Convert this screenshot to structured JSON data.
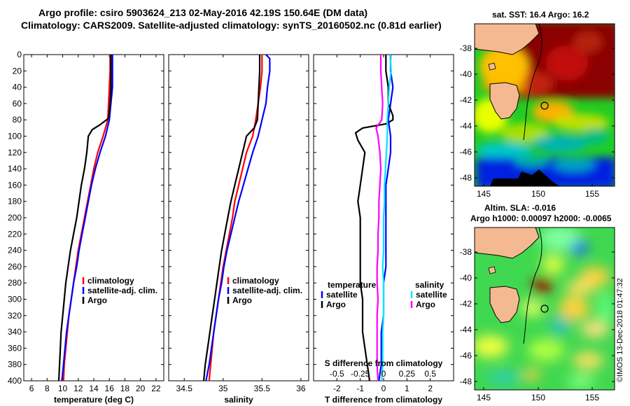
{
  "title_line1": "Argo profile: csiro 5903624_213 02-May-2016 42.19S 150.64E (DM data)",
  "title_line2": "Climatology: CARS2009. Satellite-adjusted climatology: synTS_20160502.nc (0.81d earlier)",
  "sst_title": "sat. SST: 16.4 Argo: 16.2",
  "sla_title1": "Altim. SLA: -0.016",
  "sla_title2": "Argo h1000: 0.00097 h2000: -0.0065",
  "credit": "©IMOS 13-Dec-2018 01:47:32",
  "colors": {
    "climatology": "#ff0000",
    "satellite": "#0000ff",
    "argo": "#000000",
    "sat_salinity": "#00e5ff",
    "argo_salinity": "#ff00ff"
  },
  "depth_ticks": [
    0,
    20,
    40,
    60,
    80,
    100,
    120,
    140,
    160,
    180,
    200,
    220,
    240,
    260,
    280,
    300,
    320,
    340,
    360,
    380,
    400
  ],
  "map_lat_ticks": [
    "-38",
    "-40",
    "-42",
    "-44",
    "-46",
    "-48"
  ],
  "map_lon_ticks": [
    "145",
    "150",
    "155"
  ],
  "chart_data": [
    {
      "type": "line",
      "id": "temperature",
      "xlabel": "temperature (deg C)",
      "ylabel": "",
      "xlim": [
        5,
        23
      ],
      "ylim": [
        400,
        0
      ],
      "xticks": [
        "6",
        "8",
        "10",
        "12",
        "14",
        "16",
        "18",
        "20",
        "22"
      ],
      "legend": [
        "climatology",
        "satellite-adj. clim.",
        "Argo"
      ],
      "series": [
        {
          "name": "climatology",
          "color": "#ff0000",
          "points": [
            [
              16.1,
              0
            ],
            [
              16.1,
              20
            ],
            [
              16.0,
              40
            ],
            [
              15.9,
              60
            ],
            [
              15.8,
              80
            ],
            [
              15.2,
              100
            ],
            [
              14.5,
              120
            ],
            [
              14.0,
              140
            ],
            [
              13.6,
              160
            ],
            [
              13.2,
              180
            ],
            [
              12.8,
              200
            ],
            [
              12.4,
              220
            ],
            [
              12.0,
              240
            ],
            [
              11.7,
              260
            ],
            [
              11.4,
              280
            ],
            [
              11.1,
              300
            ],
            [
              10.8,
              320
            ],
            [
              10.6,
              340
            ],
            [
              10.4,
              360
            ],
            [
              10.2,
              380
            ],
            [
              10.1,
              400
            ]
          ]
        },
        {
          "name": "satellite-adj. clim.",
          "color": "#0000ff",
          "points": [
            [
              16.4,
              0
            ],
            [
              16.4,
              20
            ],
            [
              16.4,
              40
            ],
            [
              16.2,
              60
            ],
            [
              16.0,
              80
            ],
            [
              15.5,
              100
            ],
            [
              14.8,
              120
            ],
            [
              14.2,
              140
            ],
            [
              13.7,
              160
            ],
            [
              13.3,
              180
            ],
            [
              12.9,
              200
            ],
            [
              12.5,
              220
            ],
            [
              12.1,
              240
            ],
            [
              11.8,
              260
            ],
            [
              11.4,
              280
            ],
            [
              11.1,
              300
            ],
            [
              10.8,
              320
            ],
            [
              10.5,
              340
            ],
            [
              10.3,
              360
            ],
            [
              10.1,
              380
            ],
            [
              9.9,
              400
            ]
          ]
        },
        {
          "name": "Argo",
          "color": "#000000",
          "points": [
            [
              16.2,
              0
            ],
            [
              16.2,
              20
            ],
            [
              16.2,
              40
            ],
            [
              16.1,
              60
            ],
            [
              15.9,
              78
            ],
            [
              14.8,
              86
            ],
            [
              13.8,
              92
            ],
            [
              13.3,
              100
            ],
            [
              13.1,
              120
            ],
            [
              12.8,
              140
            ],
            [
              12.4,
              160
            ],
            [
              12.1,
              180
            ],
            [
              11.8,
              200
            ],
            [
              11.4,
              220
            ],
            [
              11.0,
              240
            ],
            [
              10.7,
              260
            ],
            [
              10.4,
              280
            ],
            [
              10.2,
              300
            ],
            [
              10.0,
              320
            ],
            [
              9.8,
              340
            ],
            [
              9.7,
              360
            ],
            [
              9.6,
              380
            ],
            [
              9.5,
              400
            ]
          ]
        }
      ]
    },
    {
      "type": "line",
      "id": "salinity",
      "xlabel": "salinity",
      "ylabel": "",
      "xlim": [
        34.3,
        36.1
      ],
      "ylim": [
        400,
        0
      ],
      "xticks": [
        "34.5",
        "35",
        "35.5",
        "36"
      ],
      "legend": [
        "climatology",
        "satellite-adj. clim.",
        "Argo"
      ],
      "series": [
        {
          "name": "climatology",
          "color": "#ff0000",
          "points": [
            [
              35.5,
              0
            ],
            [
              35.5,
              20
            ],
            [
              35.48,
              40
            ],
            [
              35.45,
              60
            ],
            [
              35.42,
              80
            ],
            [
              35.38,
              100
            ],
            [
              35.3,
              120
            ],
            [
              35.25,
              140
            ],
            [
              35.2,
              160
            ],
            [
              35.15,
              180
            ],
            [
              35.12,
              200
            ],
            [
              35.08,
              220
            ],
            [
              35.04,
              240
            ],
            [
              35.0,
              260
            ],
            [
              34.97,
              280
            ],
            [
              34.94,
              300
            ],
            [
              34.91,
              320
            ],
            [
              34.88,
              340
            ],
            [
              34.86,
              360
            ],
            [
              34.84,
              380
            ],
            [
              34.82,
              400
            ]
          ]
        },
        {
          "name": "satellite-adj. clim.",
          "color": "#0000ff",
          "points": [
            [
              35.55,
              0
            ],
            [
              35.6,
              5
            ],
            [
              35.6,
              20
            ],
            [
              35.57,
              40
            ],
            [
              35.55,
              60
            ],
            [
              35.5,
              80
            ],
            [
              35.45,
              100
            ],
            [
              35.38,
              120
            ],
            [
              35.32,
              140
            ],
            [
              35.26,
              160
            ],
            [
              35.2,
              180
            ],
            [
              35.15,
              200
            ],
            [
              35.1,
              220
            ],
            [
              35.05,
              240
            ],
            [
              35.01,
              260
            ],
            [
              34.98,
              280
            ],
            [
              34.94,
              300
            ],
            [
              34.91,
              320
            ],
            [
              34.88,
              340
            ],
            [
              34.85,
              360
            ],
            [
              34.82,
              380
            ],
            [
              34.78,
              400
            ]
          ]
        },
        {
          "name": "Argo",
          "color": "#000000",
          "points": [
            [
              35.47,
              0
            ],
            [
              35.47,
              20
            ],
            [
              35.46,
              40
            ],
            [
              35.45,
              60
            ],
            [
              35.44,
              80
            ],
            [
              35.4,
              90
            ],
            [
              35.3,
              100
            ],
            [
              35.25,
              120
            ],
            [
              35.2,
              140
            ],
            [
              35.15,
              160
            ],
            [
              35.1,
              180
            ],
            [
              35.06,
              200
            ],
            [
              35.02,
              220
            ],
            [
              34.98,
              240
            ],
            [
              34.95,
              260
            ],
            [
              34.92,
              280
            ],
            [
              34.89,
              300
            ],
            [
              34.86,
              320
            ],
            [
              34.83,
              340
            ],
            [
              34.8,
              360
            ],
            [
              34.77,
              380
            ],
            [
              34.75,
              400
            ]
          ]
        }
      ]
    },
    {
      "type": "line",
      "id": "difference",
      "xlabel": "T difference from climatology",
      "xlabel_top": "S difference from climatology",
      "ylabel": "",
      "xlim": [
        -3,
        3
      ],
      "ylim": [
        400,
        0
      ],
      "xticks": [
        "-2",
        "-1",
        "0",
        "1",
        "2"
      ],
      "xticks_top": [
        "-0.5",
        "-0.25",
        "0",
        "0.25",
        "0.5"
      ],
      "legend_temperature_title": "temperature",
      "legend_salinity_title": "salinity",
      "legend_temperature": [
        "satellite",
        "Argo"
      ],
      "legend_salinity": [
        "satellite",
        "Argo"
      ],
      "series": [
        {
          "name": "temperature satellite",
          "color": "#0000ff",
          "points": [
            [
              0.3,
              0
            ],
            [
              0.3,
              20
            ],
            [
              0.4,
              40
            ],
            [
              0.3,
              60
            ],
            [
              0.2,
              80
            ],
            [
              0.3,
              100
            ],
            [
              0.3,
              120
            ],
            [
              0.2,
              140
            ],
            [
              0.1,
              160
            ],
            [
              0.1,
              180
            ],
            [
              0.1,
              200
            ],
            [
              0.1,
              220
            ],
            [
              0.1,
              240
            ],
            [
              0.1,
              260
            ],
            [
              0.0,
              280
            ],
            [
              0.0,
              300
            ],
            [
              0.0,
              320
            ],
            [
              -0.1,
              340
            ],
            [
              -0.1,
              360
            ],
            [
              -0.1,
              380
            ],
            [
              -0.2,
              400
            ]
          ]
        },
        {
          "name": "temperature Argo",
          "color": "#000000",
          "points": [
            [
              0.1,
              0
            ],
            [
              0.1,
              20
            ],
            [
              0.2,
              40
            ],
            [
              0.2,
              60
            ],
            [
              0.4,
              75
            ],
            [
              0.4,
              80
            ],
            [
              0.1,
              85
            ],
            [
              -0.9,
              90
            ],
            [
              -1.2,
              96
            ],
            [
              -1.1,
              105
            ],
            [
              -1.0,
              110
            ],
            [
              -0.8,
              120
            ],
            [
              -0.9,
              140
            ],
            [
              -1.0,
              160
            ],
            [
              -1.1,
              180
            ],
            [
              -1.0,
              200
            ],
            [
              -1.0,
              220
            ],
            [
              -1.0,
              240
            ],
            [
              -1.0,
              260
            ],
            [
              -1.0,
              280
            ],
            [
              -0.9,
              300
            ],
            [
              -0.9,
              320
            ],
            [
              -0.9,
              340
            ],
            [
              -0.8,
              360
            ],
            [
              -0.7,
              380
            ],
            [
              -0.6,
              400
            ]
          ]
        },
        {
          "name": "salinity satellite",
          "color": "#00e5ff",
          "points": [
            [
              0.07,
              0
            ],
            [
              0.08,
              20
            ],
            [
              0.06,
              40
            ],
            [
              0.05,
              60
            ],
            [
              0.04,
              80
            ],
            [
              0.04,
              100
            ],
            [
              0.03,
              120
            ],
            [
              0.02,
              140
            ],
            [
              0.01,
              160
            ],
            [
              0.01,
              180
            ],
            [
              0.0,
              200
            ],
            [
              0.0,
              220
            ],
            [
              0.0,
              240
            ],
            [
              -0.01,
              260
            ],
            [
              0.0,
              280
            ],
            [
              0.0,
              300
            ],
            [
              0.0,
              320
            ],
            [
              -0.01,
              340
            ],
            [
              -0.01,
              360
            ],
            [
              -0.01,
              380
            ],
            [
              -0.02,
              400
            ]
          ]
        },
        {
          "name": "salinity Argo",
          "color": "#ff00ff",
          "points": [
            [
              -0.03,
              0
            ],
            [
              -0.03,
              20
            ],
            [
              -0.02,
              40
            ],
            [
              -0.01,
              60
            ],
            [
              -0.02,
              80
            ],
            [
              -0.08,
              90
            ],
            [
              -0.06,
              100
            ],
            [
              -0.04,
              120
            ],
            [
              -0.03,
              140
            ],
            [
              -0.04,
              160
            ],
            [
              -0.05,
              180
            ],
            [
              -0.05,
              200
            ],
            [
              -0.06,
              220
            ],
            [
              -0.06,
              240
            ],
            [
              -0.07,
              260
            ],
            [
              -0.07,
              280
            ],
            [
              -0.06,
              300
            ],
            [
              -0.07,
              320
            ],
            [
              -0.07,
              340
            ],
            [
              -0.07,
              360
            ],
            [
              -0.07,
              380
            ],
            [
              -0.06,
              400
            ]
          ]
        }
      ]
    }
  ]
}
